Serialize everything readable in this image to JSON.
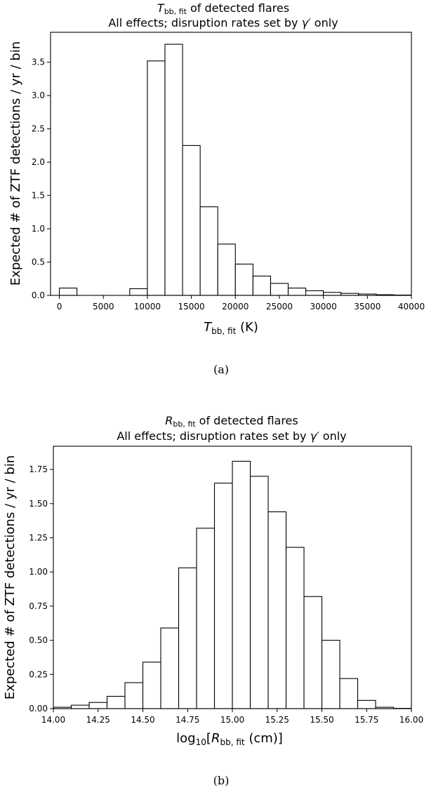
{
  "chart_data": [
    {
      "type": "bar",
      "title_line1": {
        "math": "T",
        "sub": "bb, fit",
        "rest": " of detected flares"
      },
      "title_line2": {
        "text": "All effects; disruption rates set by ",
        "math": "γ′",
        "rest": " only"
      },
      "xlabel": {
        "math": "T",
        "sub": "bb, fit",
        "rest": " (K)"
      },
      "ylabel": "Expected # of ZTF detections / yr / bin",
      "caption": "(a)",
      "xlim": [
        -1000,
        40000
      ],
      "ylim": [
        0,
        3.95
      ],
      "xticks": [
        "0",
        "5000",
        "10000",
        "15000",
        "20000",
        "25000",
        "30000",
        "35000",
        "40000"
      ],
      "yticks": [
        "0.0",
        "0.5",
        "1.0",
        "1.5",
        "2.0",
        "2.5",
        "3.0",
        "3.5"
      ],
      "bin_edges": [
        0,
        2000,
        4000,
        6000,
        8000,
        10000,
        12000,
        14000,
        16000,
        18000,
        20000,
        22000,
        24000,
        26000,
        28000,
        30000,
        32000,
        34000,
        36000,
        38000,
        40000
      ],
      "values": [
        0.11,
        0.0,
        0.0,
        0.0,
        0.1,
        3.52,
        3.77,
        2.25,
        1.33,
        0.77,
        0.47,
        0.29,
        0.18,
        0.11,
        0.07,
        0.045,
        0.03,
        0.02,
        0.01,
        0.005
      ]
    },
    {
      "type": "bar",
      "title_line1": {
        "math": "R",
        "sub": "bb, fit",
        "rest": " of detected flares"
      },
      "title_line2": {
        "text": "All effects; disruption rates set by ",
        "math": "γ′",
        "rest": " only"
      },
      "xlabel": {
        "pre": "log",
        "presub": "10",
        "open": "[",
        "math": "R",
        "sub": "bb, fit",
        "rest": " (cm)]"
      },
      "ylabel": "Expected # of ZTF detections / yr / bin",
      "caption": "(b)",
      "xlim": [
        14.0,
        16.0
      ],
      "ylim": [
        0,
        1.92
      ],
      "xticks": [
        "14.00",
        "14.25",
        "14.50",
        "14.75",
        "15.00",
        "15.25",
        "15.50",
        "15.75",
        "16.00"
      ],
      "yticks": [
        "0.00",
        "0.25",
        "0.50",
        "0.75",
        "1.00",
        "1.25",
        "1.50",
        "1.75"
      ],
      "bin_edges": [
        14.0,
        14.1,
        14.2,
        14.3,
        14.4,
        14.5,
        14.6,
        14.7,
        14.8,
        14.9,
        15.0,
        15.1,
        15.2,
        15.3,
        15.4,
        15.5,
        15.6,
        15.7,
        15.8,
        15.9,
        16.0
      ],
      "values": [
        0.01,
        0.025,
        0.045,
        0.09,
        0.19,
        0.34,
        0.59,
        1.03,
        1.32,
        1.65,
        1.81,
        1.7,
        1.44,
        1.18,
        0.82,
        0.5,
        0.22,
        0.06,
        0.01,
        0.002
      ]
    }
  ]
}
